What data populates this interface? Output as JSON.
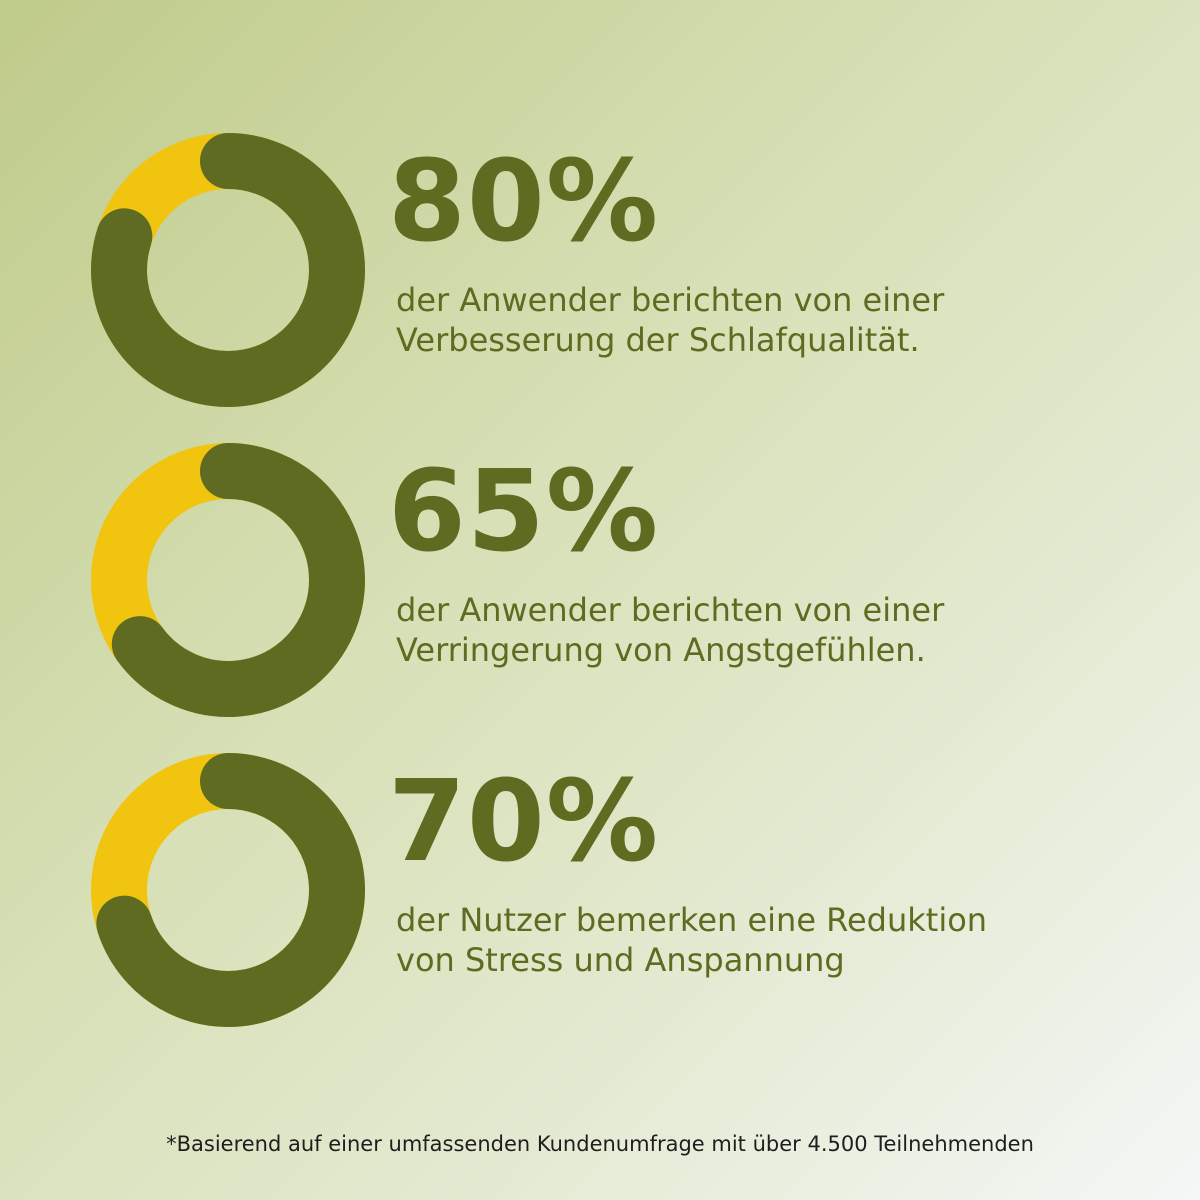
{
  "colors": {
    "primary": "#5e6b20",
    "accent": "#f1c40f",
    "footnote": "#1e1e1e"
  },
  "stats": [
    {
      "value": "80%",
      "fraction": 0.8,
      "line1": "der Anwender berichten von einer",
      "line2": "Verbesserung der Schlafqualität."
    },
    {
      "value": "65%",
      "fraction": 0.65,
      "line1": "der Anwender berichten von einer",
      "line2": "Verringerung von Angstgefühlen."
    },
    {
      "value": "70%",
      "fraction": 0.7,
      "line1": "der Nutzer bemerken eine Reduktion",
      "line2": "von Stress und Anspannung"
    }
  ],
  "footnote": "*Basierend auf einer umfassenden Kundenumfrage mit über 4.500 Teilnehmenden"
}
